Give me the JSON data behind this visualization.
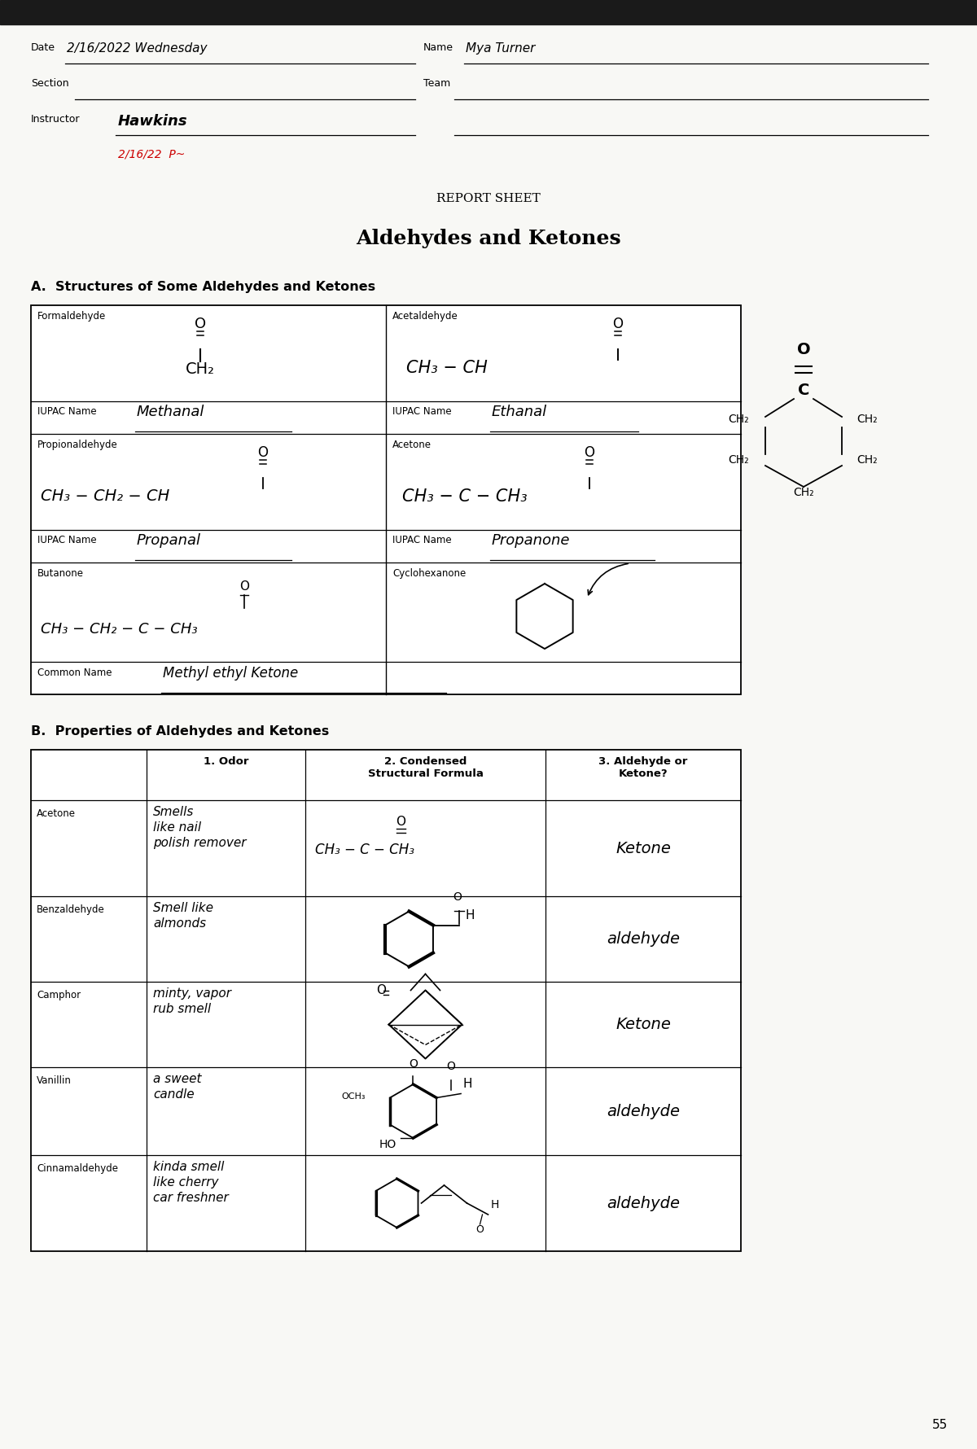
{
  "bg_color": "#ffffff",
  "title_report": "REPORT SHEET",
  "title_main": "Aldehydes and Ketones",
  "header": {
    "date_value": "2/16/2022 Wednesday",
    "name_value": "Mya Turner",
    "instructor_value": "Hawkins",
    "instructor_note": "2/16/22",
    "instructor_sig": "P~"
  },
  "section_a_title": "A.  Structures of Some Aldehydes and Ketones",
  "section_b_title": "B.  Properties of Aldehydes and Ketones",
  "table_b_headers": [
    "",
    "1. Odor",
    "2. Condensed\nStructural Formula",
    "3. Aldehyde or\nKetone?"
  ],
  "table_b_rows": [
    {
      "compound": "Acetone",
      "odor": "Smells\nlike nail\npolish remover",
      "formula": "acetone",
      "type": "Ketone"
    },
    {
      "compound": "Benzaldehyde",
      "odor": "Smell like\nalmonds",
      "formula": "benzaldehyde",
      "type": "aldehyde"
    },
    {
      "compound": "Camphor",
      "odor": "minty, vapor\nrub smell",
      "formula": "camphor",
      "type": "Ketone"
    },
    {
      "compound": "Vanillin",
      "odor": "a sweet\ncandle",
      "formula": "vanillin",
      "type": "aldehyde"
    },
    {
      "compound": "Cinnamaldehyde",
      "odor": "kinda smell\nlike cherry\ncar freshner",
      "formula": "cinnamaldehyde",
      "type": "aldehyde"
    }
  ],
  "page_number": "55"
}
